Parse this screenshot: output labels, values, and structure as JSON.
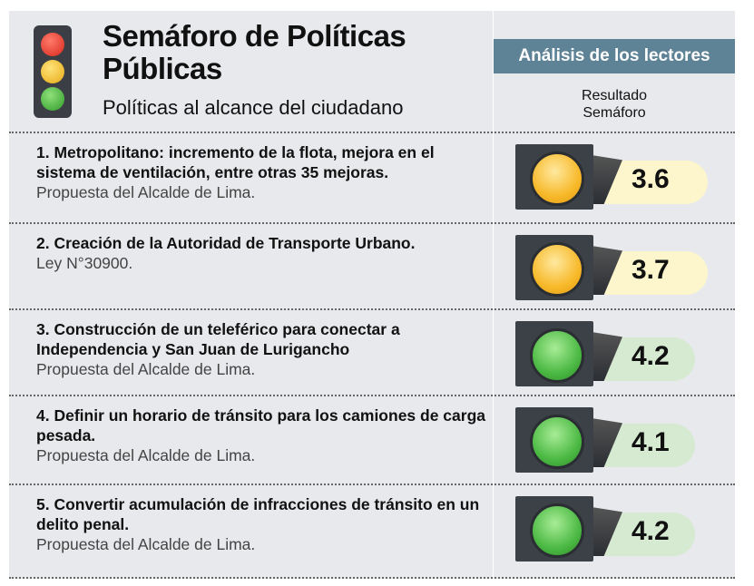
{
  "header": {
    "title": "Semáforo de Políticas Públicas",
    "subtitle": "Políticas al alcance del ciudadano",
    "badge": "Análisis de los lectores",
    "column_label": "Resultado Semáforo"
  },
  "colors": {
    "yellow": "#f7b92a",
    "green": "#4cb944",
    "yellow_pill": "#fdf6cc",
    "green_pill": "#d6ead2",
    "badge": "#5f8396"
  },
  "rows": [
    {
      "title": "1. Metropolitano: incremento de la flota, mejora en el sistema de ventilación, entre otras 35 mejoras.",
      "source": "Propuesta del Alcalde de Lima.",
      "score": "3.6",
      "light": "yellow"
    },
    {
      "title": "2. Creación de la Autoridad de Transporte Urbano.",
      "source": "Ley N°30900.",
      "score": "3.7",
      "light": "yellow"
    },
    {
      "title": "3. Construcción de un teleférico para conectar a Independencia y San Juan de Lurigancho",
      "source": "Propuesta del Alcalde de Lima.",
      "score": "4.2",
      "light": "green"
    },
    {
      "title": "4. Definir un horario de tránsito para los camiones de carga pesada.",
      "source": "Propuesta del Alcalde de Lima.",
      "score": "4.1",
      "light": "green"
    },
    {
      "title": "5. Convertir acumulación de infracciones de tránsito en un delito penal.",
      "source": "Propuesta del Alcalde de Lima.",
      "score": "4.2",
      "light": "green"
    }
  ]
}
